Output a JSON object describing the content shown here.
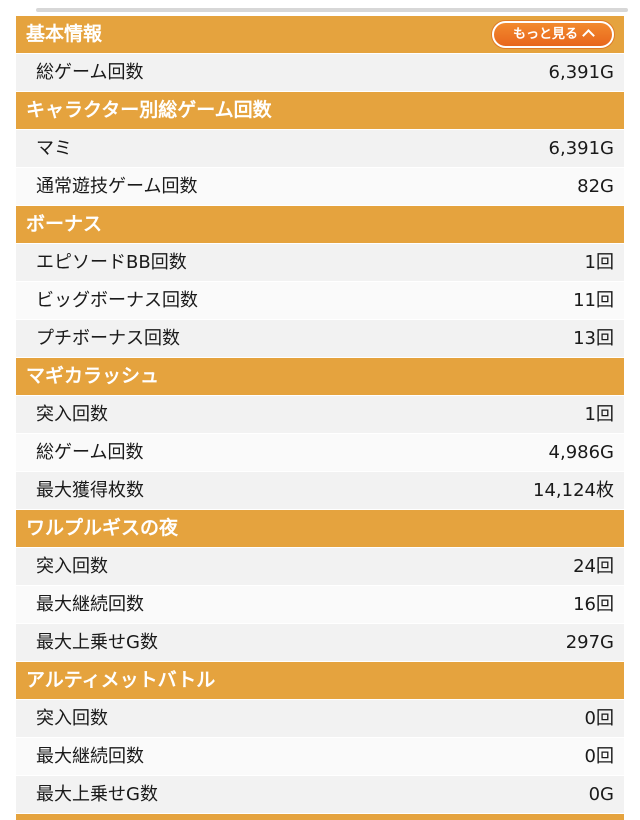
{
  "more_button": {
    "label": "もっと見る"
  },
  "sections": [
    {
      "title": "基本情報",
      "rows": [
        {
          "label": "総ゲーム回数",
          "value": "6,391G"
        }
      ]
    },
    {
      "title": "キャラクター別総ゲーム回数",
      "rows": [
        {
          "label": "マミ",
          "value": "6,391G"
        },
        {
          "label": "通常遊技ゲーム回数",
          "value": "82G"
        }
      ]
    },
    {
      "title": "ボーナス",
      "rows": [
        {
          "label": "エピソードBB回数",
          "value": "1回"
        },
        {
          "label": "ビッグボーナス回数",
          "value": "11回"
        },
        {
          "label": "プチボーナス回数",
          "value": "13回"
        }
      ]
    },
    {
      "title": "マギカラッシュ",
      "rows": [
        {
          "label": "突入回数",
          "value": "1回"
        },
        {
          "label": "総ゲーム回数",
          "value": "4,986G"
        },
        {
          "label": "最大獲得枚数",
          "value": "14,124枚"
        }
      ]
    },
    {
      "title": "ワルプルギスの夜",
      "rows": [
        {
          "label": "突入回数",
          "value": "24回"
        },
        {
          "label": "最大継続回数",
          "value": "16回"
        },
        {
          "label": "最大上乗せG数",
          "value": "297G"
        }
      ]
    },
    {
      "title": "アルティメットバトル",
      "rows": [
        {
          "label": "突入回数",
          "value": "0回"
        },
        {
          "label": "最大継続回数",
          "value": "0回"
        },
        {
          "label": "最大上乗せG数",
          "value": "0G"
        }
      ]
    }
  ],
  "colors": {
    "header_bg": "#e5a33e",
    "button_bg": "#ef7d27",
    "row_odd": "#f2f2f2",
    "row_even": "#fafafa"
  }
}
